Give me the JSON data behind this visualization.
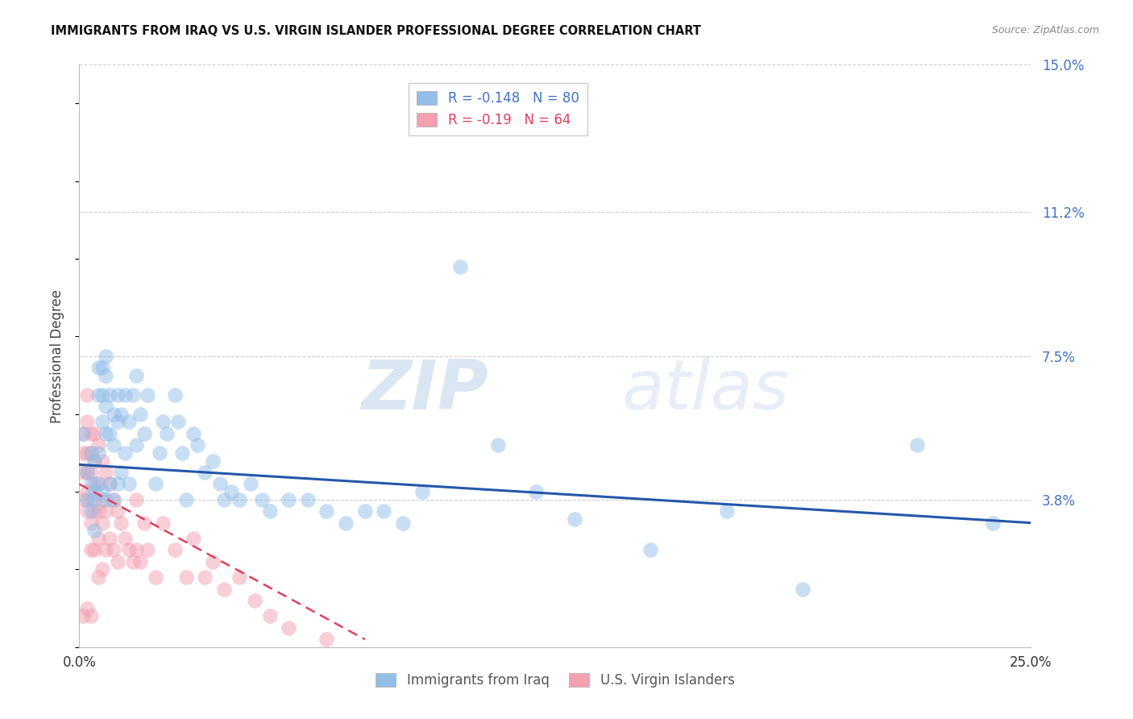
{
  "title": "IMMIGRANTS FROM IRAQ VS U.S. VIRGIN ISLANDER PROFESSIONAL DEGREE CORRELATION CHART",
  "source": "Source: ZipAtlas.com",
  "ylabel_label": "Professional Degree",
  "x_min": 0.0,
  "x_max": 0.25,
  "y_min": 0.0,
  "y_max": 0.15,
  "y_ticks": [
    0.038,
    0.075,
    0.112,
    0.15
  ],
  "y_tick_labels": [
    "3.8%",
    "7.5%",
    "11.2%",
    "15.0%"
  ],
  "x_ticks": [
    0.0,
    0.05,
    0.1,
    0.15,
    0.2,
    0.25
  ],
  "blue_R": -0.148,
  "blue_N": 80,
  "pink_R": -0.19,
  "pink_N": 64,
  "blue_color": "#92bee8",
  "pink_color": "#f4a0b0",
  "blue_line_color": "#2457a8",
  "pink_line_color": "#e04060",
  "legend_label_blue": "Immigrants from Iraq",
  "legend_label_pink": "U.S. Virgin Islanders",
  "watermark_zip": "ZIP",
  "watermark_atlas": "atlas",
  "blue_scatter_x": [
    0.001,
    0.002,
    0.002,
    0.003,
    0.003,
    0.003,
    0.004,
    0.004,
    0.004,
    0.004,
    0.005,
    0.005,
    0.005,
    0.005,
    0.006,
    0.006,
    0.006,
    0.006,
    0.007,
    0.007,
    0.007,
    0.007,
    0.007,
    0.008,
    0.008,
    0.008,
    0.009,
    0.009,
    0.009,
    0.01,
    0.01,
    0.01,
    0.011,
    0.011,
    0.012,
    0.012,
    0.013,
    0.013,
    0.014,
    0.015,
    0.015,
    0.016,
    0.017,
    0.018,
    0.02,
    0.021,
    0.022,
    0.023,
    0.025,
    0.026,
    0.027,
    0.028,
    0.03,
    0.031,
    0.033,
    0.035,
    0.037,
    0.038,
    0.04,
    0.042,
    0.045,
    0.048,
    0.05,
    0.055,
    0.06,
    0.065,
    0.07,
    0.075,
    0.08,
    0.085,
    0.09,
    0.1,
    0.11,
    0.12,
    0.13,
    0.15,
    0.17,
    0.19,
    0.22,
    0.24
  ],
  "blue_scatter_y": [
    0.055,
    0.038,
    0.045,
    0.05,
    0.042,
    0.035,
    0.048,
    0.04,
    0.038,
    0.03,
    0.072,
    0.065,
    0.05,
    0.042,
    0.072,
    0.065,
    0.058,
    0.04,
    0.075,
    0.07,
    0.062,
    0.055,
    0.038,
    0.065,
    0.055,
    0.042,
    0.06,
    0.052,
    0.038,
    0.065,
    0.058,
    0.042,
    0.06,
    0.045,
    0.065,
    0.05,
    0.058,
    0.042,
    0.065,
    0.07,
    0.052,
    0.06,
    0.055,
    0.065,
    0.042,
    0.05,
    0.058,
    0.055,
    0.065,
    0.058,
    0.05,
    0.038,
    0.055,
    0.052,
    0.045,
    0.048,
    0.042,
    0.038,
    0.04,
    0.038,
    0.042,
    0.038,
    0.035,
    0.038,
    0.038,
    0.035,
    0.032,
    0.035,
    0.035,
    0.032,
    0.04,
    0.098,
    0.052,
    0.04,
    0.033,
    0.025,
    0.035,
    0.015,
    0.052,
    0.032
  ],
  "pink_scatter_x": [
    0.001,
    0.001,
    0.001,
    0.001,
    0.001,
    0.002,
    0.002,
    0.002,
    0.002,
    0.002,
    0.002,
    0.002,
    0.003,
    0.003,
    0.003,
    0.003,
    0.003,
    0.003,
    0.003,
    0.004,
    0.004,
    0.004,
    0.004,
    0.004,
    0.005,
    0.005,
    0.005,
    0.005,
    0.005,
    0.006,
    0.006,
    0.006,
    0.006,
    0.007,
    0.007,
    0.007,
    0.008,
    0.008,
    0.009,
    0.009,
    0.01,
    0.01,
    0.011,
    0.012,
    0.013,
    0.014,
    0.015,
    0.015,
    0.016,
    0.017,
    0.018,
    0.02,
    0.022,
    0.025,
    0.028,
    0.03,
    0.033,
    0.035,
    0.038,
    0.042,
    0.046,
    0.05,
    0.055,
    0.065
  ],
  "pink_scatter_y": [
    0.055,
    0.05,
    0.045,
    0.038,
    0.008,
    0.065,
    0.058,
    0.05,
    0.045,
    0.04,
    0.035,
    0.01,
    0.055,
    0.05,
    0.045,
    0.038,
    0.032,
    0.025,
    0.008,
    0.055,
    0.048,
    0.042,
    0.035,
    0.025,
    0.052,
    0.042,
    0.035,
    0.028,
    0.018,
    0.048,
    0.038,
    0.032,
    0.02,
    0.045,
    0.035,
    0.025,
    0.042,
    0.028,
    0.038,
    0.025,
    0.035,
    0.022,
    0.032,
    0.028,
    0.025,
    0.022,
    0.038,
    0.025,
    0.022,
    0.032,
    0.025,
    0.018,
    0.032,
    0.025,
    0.018,
    0.028,
    0.018,
    0.022,
    0.015,
    0.018,
    0.012,
    0.008,
    0.005,
    0.002
  ],
  "blue_line_x0": 0.0,
  "blue_line_x1": 0.25,
  "blue_line_y0": 0.047,
  "blue_line_y1": 0.032,
  "pink_line_x0": 0.0,
  "pink_line_x1": 0.075,
  "pink_line_y0": 0.042,
  "pink_line_y1": 0.002
}
